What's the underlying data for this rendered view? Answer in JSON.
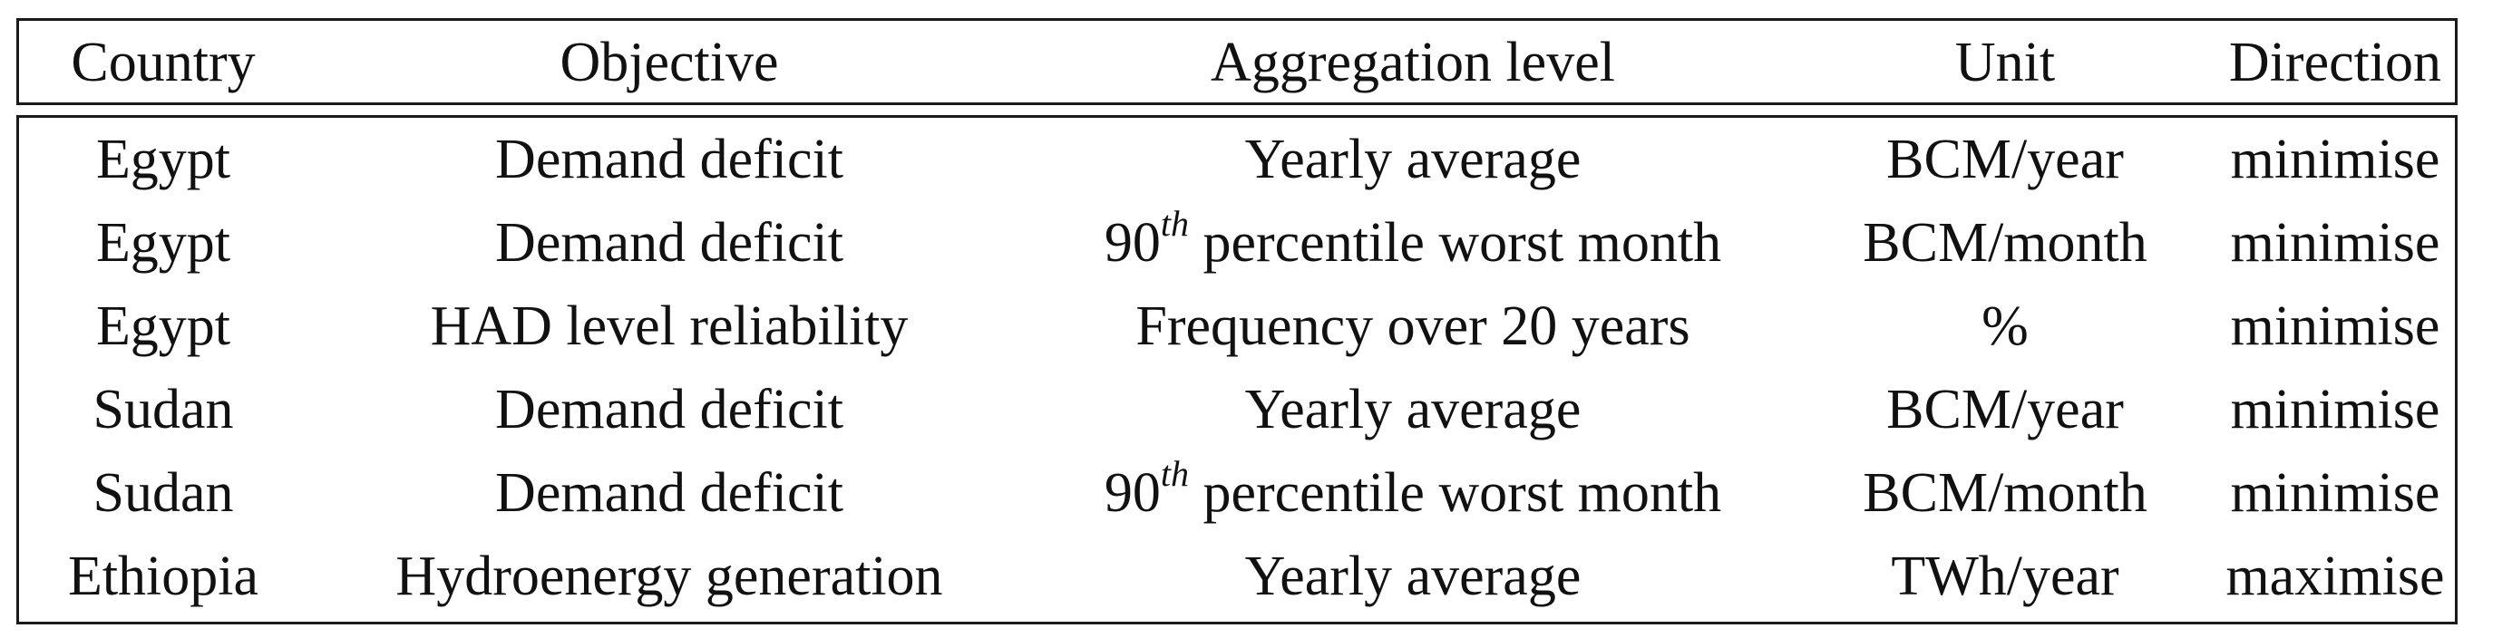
{
  "table": {
    "headers": [
      "Country",
      "Objective",
      "Aggregation level",
      "Unit",
      "Direction"
    ],
    "rows": [
      {
        "country": "Egypt",
        "objective": "Demand deficit",
        "aggregation": "Yearly average",
        "aggregation_sup": "",
        "aggregation_rest": "",
        "unit": "BCM/year",
        "direction": "minimise"
      },
      {
        "country": "Egypt",
        "objective": "Demand deficit",
        "aggregation": "90",
        "aggregation_sup": "th",
        "aggregation_rest": " percentile worst month",
        "unit": "BCM/month",
        "direction": "minimise"
      },
      {
        "country": "Egypt",
        "objective": "HAD level reliability",
        "aggregation": "Frequency over 20 years",
        "aggregation_sup": "",
        "aggregation_rest": "",
        "unit": "%",
        "direction": "minimise"
      },
      {
        "country": "Sudan",
        "objective": "Demand deficit",
        "aggregation": "Yearly average",
        "aggregation_sup": "",
        "aggregation_rest": "",
        "unit": "BCM/year",
        "direction": "minimise"
      },
      {
        "country": "Sudan",
        "objective": "Demand deficit",
        "aggregation": "90",
        "aggregation_sup": "th",
        "aggregation_rest": " percentile worst month",
        "unit": "BCM/month",
        "direction": "minimise"
      },
      {
        "country": "Ethiopia",
        "objective": "Hydroenergy generation",
        "aggregation": "Yearly average",
        "aggregation_sup": "",
        "aggregation_rest": "",
        "unit": "TWh/year",
        "direction": "maximise"
      }
    ]
  }
}
